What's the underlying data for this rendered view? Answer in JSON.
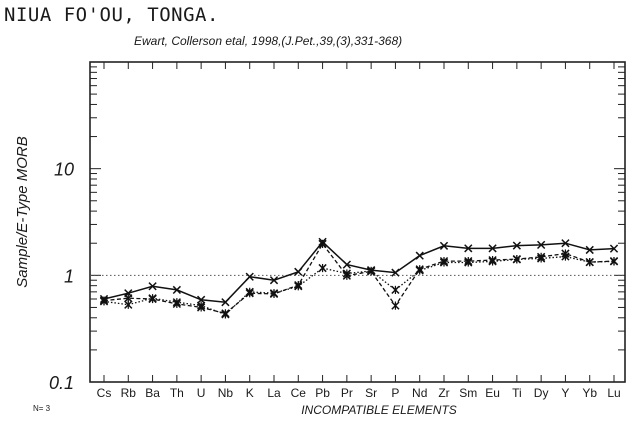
{
  "header": {
    "title": "NIUA FO'OU, TONGA.",
    "subtitle": "Ewart, Collerson etal, 1998,(J.Pet.,39,(3),331-368)"
  },
  "footer": {
    "n_label": "N= 3"
  },
  "chart_data": {
    "type": "line",
    "title": "NIUA FO'OU, TONGA.",
    "subtitle": "Ewart, Collerson etal, 1998,(J.Pet.,39,(3),331-368)",
    "xlabel": "INCOMPATIBLE ELEMENTS",
    "ylabel": "Sample/E-Type MORB",
    "yscale": "log",
    "ylim": [
      0.1,
      100
    ],
    "yticks": [
      {
        "value": 0.1,
        "label": "0.1"
      },
      {
        "value": 1,
        "label": "1"
      },
      {
        "value": 10,
        "label": "10"
      }
    ],
    "reference_line": 1,
    "categories": [
      "Cs",
      "Rb",
      "Ba",
      "Th",
      "U",
      "Nb",
      "K",
      "La",
      "Ce",
      "Pb",
      "Pr",
      "Sr",
      "P",
      "Nd",
      "Zr",
      "Sm",
      "Eu",
      "Ti",
      "Dy",
      "Y",
      "Yb",
      "Lu"
    ],
    "grid": false,
    "series": [
      {
        "style": "solid",
        "marker": "x",
        "values": [
          0.6,
          0.68,
          0.79,
          0.73,
          0.59,
          0.56,
          0.97,
          0.9,
          1.08,
          2.06,
          1.26,
          1.12,
          1.06,
          1.53,
          1.89,
          1.79,
          1.79,
          1.9,
          1.93,
          2.0,
          1.73,
          1.78
        ]
      },
      {
        "style": "dashed",
        "marker": "x",
        "values": [
          0.58,
          0.61,
          0.6,
          0.54,
          0.5,
          0.44,
          0.68,
          0.67,
          0.81,
          1.97,
          0.99,
          1.09,
          0.52,
          1.14,
          1.36,
          1.36,
          1.39,
          1.42,
          1.49,
          1.6,
          1.33,
          1.36
        ]
      },
      {
        "style": "dotted",
        "marker": "x",
        "values": [
          0.57,
          0.53,
          0.61,
          0.56,
          0.52,
          0.43,
          0.7,
          0.68,
          0.79,
          1.17,
          1.04,
          1.1,
          0.73,
          1.11,
          1.32,
          1.32,
          1.35,
          1.41,
          1.44,
          1.5,
          1.33,
          1.35
        ]
      }
    ]
  }
}
